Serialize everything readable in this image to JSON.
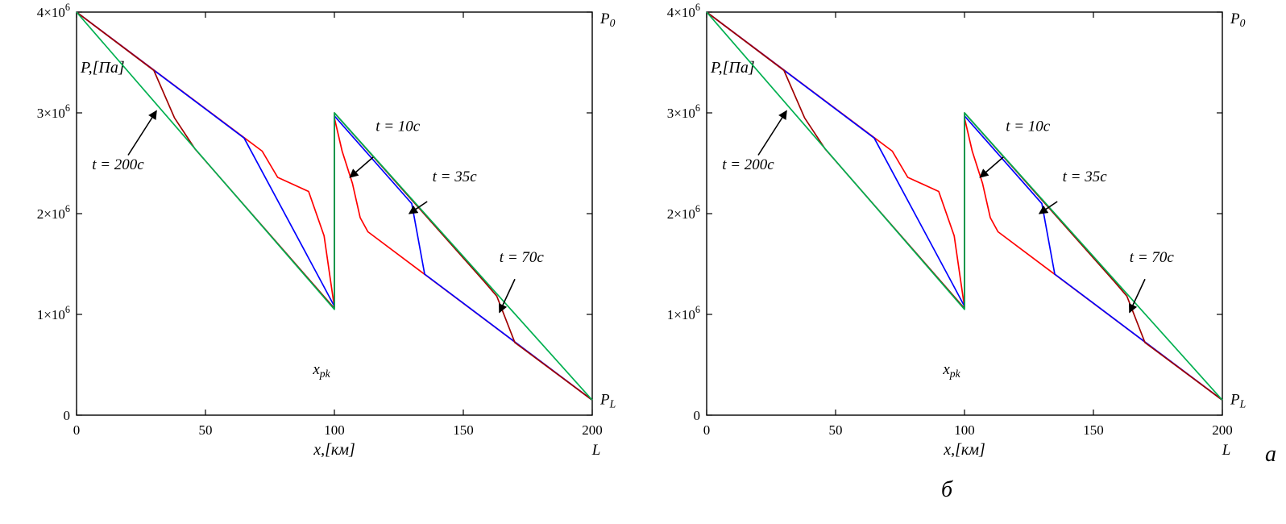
{
  "page": {
    "label_a": "а",
    "label_b": "б",
    "background": "#ffffff"
  },
  "chart_data": [
    {
      "id": "left",
      "type": "line",
      "title": "",
      "xlabel": "x,[км]",
      "ylabel": "P,[Па]",
      "xlim": [
        0,
        200
      ],
      "ylim": [
        0,
        4000000
      ],
      "grid": false,
      "legend_position": "none",
      "xticks": [
        0,
        50,
        100,
        150,
        200
      ],
      "xtick_labels": [
        "0",
        "50",
        "100",
        "150",
        "200"
      ],
      "yticks": [
        0,
        1000000,
        2000000,
        3000000,
        4000000
      ],
      "ytick_labels": [
        "0",
        "1×10^6",
        "2×10^6",
        "3×10^6",
        "4×10^6"
      ],
      "corner_labels": {
        "top_right": "P_0",
        "bottom_right": "P_L",
        "axis_end": "L",
        "leak_point": "x_pk",
        "leak_point_xy": [
          95,
          450000
        ]
      },
      "series": [
        {
          "name": "t = 10c",
          "color": "#ff0000",
          "points": [
            [
              0,
              4000000
            ],
            [
              72,
              2620000
            ],
            [
              78,
              2360000
            ],
            [
              90,
              2220000
            ],
            [
              96,
              1780000
            ],
            [
              100,
              1070000
            ],
            [
              100,
              2950000
            ],
            [
              103,
              2620000
            ],
            [
              107,
              2300000
            ],
            [
              110,
              1960000
            ],
            [
              113,
              1820000
            ],
            [
              200,
              150000
            ]
          ]
        },
        {
          "name": "t = 35c",
          "color": "#0000ff",
          "points": [
            [
              0,
              4000000
            ],
            [
              65,
              2750000
            ],
            [
              95,
              1320000
            ],
            [
              100,
              1080000
            ],
            [
              100,
              2970000
            ],
            [
              130,
              2100000
            ],
            [
              135,
              1400000
            ],
            [
              200,
              150000
            ]
          ]
        },
        {
          "name": "t = 70c",
          "color": "#a00000",
          "points": [
            [
              0,
              4000000
            ],
            [
              30,
              3420000
            ],
            [
              38,
              2950000
            ],
            [
              46,
              2640000
            ],
            [
              100,
              1060000
            ],
            [
              100,
              3000000
            ],
            [
              158,
              1330000
            ],
            [
              163,
              1180000
            ],
            [
              170,
              720000
            ],
            [
              200,
              150000
            ]
          ]
        },
        {
          "name": "t = 200c",
          "color": "#00b050",
          "points": [
            [
              0,
              4000000
            ],
            [
              100,
              1050000
            ],
            [
              100,
              3000000
            ],
            [
              200,
              150000
            ]
          ]
        }
      ],
      "annotations": [
        {
          "text": "t = 200c",
          "text_xy": [
            6,
            2440000
          ],
          "arrow_from": [
            20,
            2580000
          ],
          "arrow_to": [
            31,
            3020000
          ]
        },
        {
          "text": "t = 10c",
          "text_xy": [
            116,
            2820000
          ],
          "arrow_from": [
            115,
            2560000
          ],
          "arrow_to": [
            106,
            2360000
          ]
        },
        {
          "text": "t = 35c",
          "text_xy": [
            138,
            2320000
          ],
          "arrow_from": [
            136,
            2120000
          ],
          "arrow_to": [
            129,
            2000000
          ]
        },
        {
          "text": "t = 70c",
          "text_xy": [
            164,
            1520000
          ],
          "arrow_from": [
            170,
            1350000
          ],
          "arrow_to": [
            164,
            1020000
          ]
        }
      ]
    },
    {
      "id": "right",
      "type": "line",
      "title": "",
      "xlabel": "x,[км]",
      "ylabel": "P,[Па]",
      "xlim": [
        0,
        200
      ],
      "ylim": [
        0,
        4000000
      ],
      "grid": false,
      "legend_position": "none",
      "xticks": [
        0,
        50,
        100,
        150,
        200
      ],
      "xtick_labels": [
        "0",
        "50",
        "100",
        "150",
        "200"
      ],
      "yticks": [
        0,
        1000000,
        2000000,
        3000000,
        4000000
      ],
      "ytick_labels": [
        "0",
        "1×10^6",
        "2×10^6",
        "3×10^6",
        "4×10^6"
      ],
      "corner_labels": {
        "top_right": "P_0",
        "bottom_right": "P_L",
        "axis_end": "L",
        "leak_point": "x_pk",
        "leak_point_xy": [
          95,
          450000
        ]
      },
      "series": [
        {
          "name": "t = 10c",
          "color": "#ff0000",
          "points": [
            [
              0,
              4000000
            ],
            [
              72,
              2620000
            ],
            [
              78,
              2360000
            ],
            [
              90,
              2220000
            ],
            [
              96,
              1780000
            ],
            [
              100,
              1070000
            ],
            [
              100,
              2950000
            ],
            [
              103,
              2620000
            ],
            [
              107,
              2300000
            ],
            [
              110,
              1960000
            ],
            [
              113,
              1820000
            ],
            [
              200,
              150000
            ]
          ]
        },
        {
          "name": "t = 35c",
          "color": "#0000ff",
          "points": [
            [
              0,
              4000000
            ],
            [
              65,
              2750000
            ],
            [
              95,
              1320000
            ],
            [
              100,
              1080000
            ],
            [
              100,
              2970000
            ],
            [
              130,
              2100000
            ],
            [
              135,
              1400000
            ],
            [
              200,
              150000
            ]
          ]
        },
        {
          "name": "t = 70c",
          "color": "#a00000",
          "points": [
            [
              0,
              4000000
            ],
            [
              30,
              3420000
            ],
            [
              38,
              2950000
            ],
            [
              46,
              2640000
            ],
            [
              100,
              1060000
            ],
            [
              100,
              3000000
            ],
            [
              158,
              1330000
            ],
            [
              163,
              1180000
            ],
            [
              170,
              720000
            ],
            [
              200,
              150000
            ]
          ]
        },
        {
          "name": "t = 200c",
          "color": "#00b050",
          "points": [
            [
              0,
              4000000
            ],
            [
              100,
              1050000
            ],
            [
              100,
              3000000
            ],
            [
              200,
              150000
            ]
          ]
        }
      ],
      "annotations": [
        {
          "text": "t = 200c",
          "text_xy": [
            6,
            2440000
          ],
          "arrow_from": [
            20,
            2580000
          ],
          "arrow_to": [
            31,
            3020000
          ]
        },
        {
          "text": "t = 10c",
          "text_xy": [
            116,
            2820000
          ],
          "arrow_from": [
            115,
            2560000
          ],
          "arrow_to": [
            106,
            2360000
          ]
        },
        {
          "text": "t = 35c",
          "text_xy": [
            138,
            2320000
          ],
          "arrow_from": [
            136,
            2120000
          ],
          "arrow_to": [
            129,
            2000000
          ]
        },
        {
          "text": "t = 70c",
          "text_xy": [
            164,
            1520000
          ],
          "arrow_from": [
            170,
            1350000
          ],
          "arrow_to": [
            164,
            1020000
          ]
        }
      ]
    }
  ]
}
